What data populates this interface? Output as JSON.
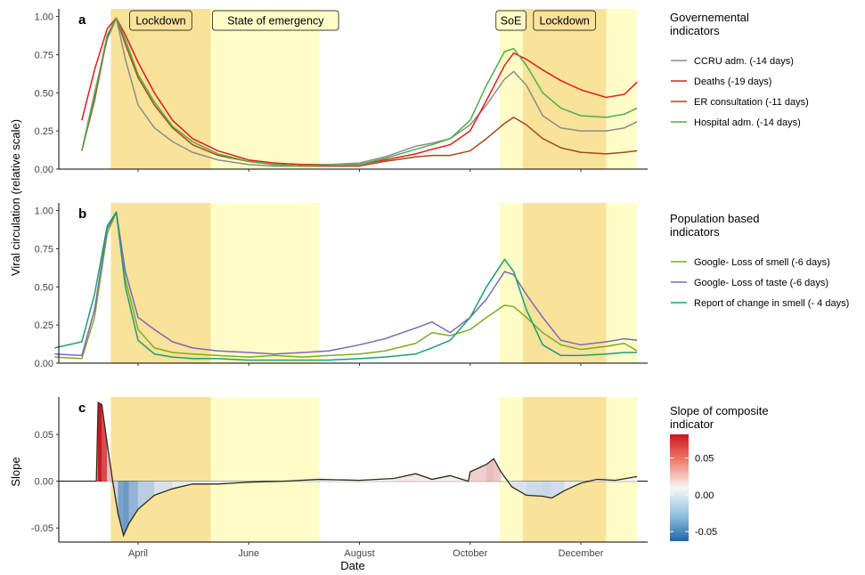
{
  "chart_data": {
    "type": "line",
    "xlabel": "Date",
    "ylabel_shared": "Viral circulation (relative scale)",
    "x_ticks": [
      "April",
      "June",
      "August",
      "October",
      "December"
    ],
    "x_tick_dates": [
      "2020-04-01",
      "2020-06-01",
      "2020-08-01",
      "2020-10-01",
      "2020-12-01"
    ],
    "x_range": [
      "2020-02-15",
      "2021-01-13"
    ],
    "periods": [
      {
        "label": "Lockdown",
        "start": "2020-03-17",
        "end": "2020-05-11",
        "color": "#f9e29a"
      },
      {
        "label": "State of emergency",
        "start": "2020-05-11",
        "end": "2020-07-10",
        "color": "#fefcc7"
      },
      {
        "label": "SoE",
        "start": "2020-10-17",
        "end": "2020-10-30",
        "color": "#fefcc7"
      },
      {
        "label": "Lockdown",
        "start": "2020-10-30",
        "end": "2020-12-15",
        "color": "#f9e29a"
      },
      {
        "label": "",
        "start": "2020-12-15",
        "end": "2021-01-01",
        "color": "#fefcc7"
      }
    ],
    "panels": [
      {
        "letter": "a",
        "ylim": [
          0,
          1.05
        ],
        "y_ticks": [
          "0.00",
          "0.25",
          "0.50",
          "0.75",
          "1.00"
        ],
        "legend_title": "Governemental\n indicators",
        "series": [
          {
            "name": "CCRU adm. (-14 days)",
            "color": "#8c8c8c",
            "x": [
              "2020-03-01",
              "2020-03-08",
              "2020-03-15",
              "2020-03-20",
              "2020-03-25",
              "2020-04-01",
              "2020-04-10",
              "2020-04-20",
              "2020-05-01",
              "2020-05-15",
              "2020-06-01",
              "2020-06-15",
              "2020-07-01",
              "2020-07-15",
              "2020-08-01",
              "2020-08-15",
              "2020-09-01",
              "2020-09-10",
              "2020-09-20",
              "2020-10-01",
              "2020-10-10",
              "2020-10-20",
              "2020-10-25",
              "2020-11-01",
              "2020-11-10",
              "2020-11-20",
              "2020-12-01",
              "2020-12-15",
              "2020-12-25",
              "2021-01-01"
            ],
            "y": [
              0.12,
              0.5,
              0.85,
              0.99,
              0.72,
              0.42,
              0.27,
              0.18,
              0.11,
              0.06,
              0.03,
              0.02,
              0.02,
              0.03,
              0.04,
              0.08,
              0.15,
              0.17,
              0.2,
              0.29,
              0.42,
              0.59,
              0.64,
              0.55,
              0.35,
              0.27,
              0.25,
              0.25,
              0.27,
              0.31
            ]
          },
          {
            "name": "Deaths (-19 days)",
            "color": "#e41a1c",
            "x": [
              "2020-03-01",
              "2020-03-08",
              "2020-03-15",
              "2020-03-20",
              "2020-03-25",
              "2020-04-01",
              "2020-04-10",
              "2020-04-20",
              "2020-05-01",
              "2020-05-15",
              "2020-06-01",
              "2020-06-15",
              "2020-07-01",
              "2020-07-15",
              "2020-08-01",
              "2020-08-15",
              "2020-09-01",
              "2020-09-10",
              "2020-09-20",
              "2020-10-01",
              "2020-10-10",
              "2020-10-20",
              "2020-10-25",
              "2020-11-01",
              "2020-11-10",
              "2020-11-20",
              "2020-12-01",
              "2020-12-15",
              "2020-12-25",
              "2021-01-01"
            ],
            "y": [
              0.32,
              0.65,
              0.92,
              0.99,
              0.88,
              0.7,
              0.5,
              0.32,
              0.2,
              0.12,
              0.06,
              0.04,
              0.03,
              0.03,
              0.03,
              0.06,
              0.1,
              0.13,
              0.16,
              0.25,
              0.45,
              0.68,
              0.76,
              0.72,
              0.65,
              0.58,
              0.52,
              0.47,
              0.49,
              0.57
            ]
          },
          {
            "name": "ER consultation (-11 days)",
            "color": "#a6461e",
            "x": [
              "2020-03-01",
              "2020-03-08",
              "2020-03-15",
              "2020-03-20",
              "2020-03-25",
              "2020-04-01",
              "2020-04-10",
              "2020-04-20",
              "2020-05-01",
              "2020-05-15",
              "2020-06-01",
              "2020-06-15",
              "2020-07-01",
              "2020-07-15",
              "2020-08-01",
              "2020-08-15",
              "2020-09-01",
              "2020-09-10",
              "2020-09-20",
              "2020-10-01",
              "2020-10-10",
              "2020-10-20",
              "2020-10-25",
              "2020-11-01",
              "2020-11-10",
              "2020-11-20",
              "2020-12-01",
              "2020-12-15",
              "2020-12-25",
              "2021-01-01"
            ],
            "y": [
              0.12,
              0.45,
              0.87,
              0.99,
              0.82,
              0.6,
              0.42,
              0.27,
              0.16,
              0.09,
              0.05,
              0.03,
              0.02,
              0.02,
              0.02,
              0.05,
              0.08,
              0.09,
              0.09,
              0.12,
              0.2,
              0.3,
              0.34,
              0.29,
              0.2,
              0.14,
              0.11,
              0.1,
              0.11,
              0.12
            ]
          },
          {
            "name": "Hospital adm. (-14 days)",
            "color": "#4daf4a",
            "x": [
              "2020-03-01",
              "2020-03-08",
              "2020-03-15",
              "2020-03-20",
              "2020-03-25",
              "2020-04-01",
              "2020-04-10",
              "2020-04-20",
              "2020-05-01",
              "2020-05-15",
              "2020-06-01",
              "2020-06-15",
              "2020-07-01",
              "2020-07-15",
              "2020-08-01",
              "2020-08-15",
              "2020-09-01",
              "2020-09-10",
              "2020-09-20",
              "2020-10-01",
              "2020-10-10",
              "2020-10-20",
              "2020-10-25",
              "2020-11-01",
              "2020-11-10",
              "2020-11-20",
              "2020-12-01",
              "2020-12-15",
              "2020-12-25",
              "2021-01-01"
            ],
            "y": [
              0.12,
              0.48,
              0.88,
              0.99,
              0.85,
              0.62,
              0.44,
              0.28,
              0.18,
              0.1,
              0.05,
              0.03,
              0.02,
              0.03,
              0.03,
              0.07,
              0.13,
              0.16,
              0.2,
              0.32,
              0.55,
              0.77,
              0.79,
              0.68,
              0.5,
              0.4,
              0.35,
              0.34,
              0.36,
              0.4
            ]
          }
        ]
      },
      {
        "letter": "b",
        "ylim": [
          0,
          1.05
        ],
        "y_ticks": [
          "0.00",
          "0.25",
          "0.50",
          "0.75",
          "1.00"
        ],
        "legend_title": "Population based\n indicators",
        "series": [
          {
            "name": "Google- Loss of smell  (-6 days)",
            "color": "#7cae1e",
            "x": [
              "2020-02-15",
              "2020-03-01",
              "2020-03-08",
              "2020-03-15",
              "2020-03-20",
              "2020-03-25",
              "2020-04-01",
              "2020-04-10",
              "2020-04-20",
              "2020-05-01",
              "2020-05-15",
              "2020-06-01",
              "2020-06-15",
              "2020-07-01",
              "2020-07-15",
              "2020-08-01",
              "2020-08-15",
              "2020-09-01",
              "2020-09-10",
              "2020-09-20",
              "2020-10-01",
              "2020-10-10",
              "2020-10-20",
              "2020-10-25",
              "2020-11-01",
              "2020-11-10",
              "2020-11-20",
              "2020-12-01",
              "2020-12-15",
              "2020-12-25",
              "2021-01-01"
            ],
            "y": [
              0.04,
              0.03,
              0.3,
              0.85,
              0.99,
              0.55,
              0.22,
              0.1,
              0.07,
              0.06,
              0.05,
              0.04,
              0.05,
              0.04,
              0.05,
              0.06,
              0.08,
              0.13,
              0.2,
              0.18,
              0.22,
              0.3,
              0.38,
              0.37,
              0.3,
              0.2,
              0.12,
              0.09,
              0.11,
              0.13,
              0.08
            ]
          },
          {
            "name": "Google- Loss of taste (-6 days)",
            "color": "#7b68b5",
            "x": [
              "2020-02-15",
              "2020-03-01",
              "2020-03-08",
              "2020-03-15",
              "2020-03-20",
              "2020-03-25",
              "2020-04-01",
              "2020-04-10",
              "2020-04-20",
              "2020-05-01",
              "2020-05-15",
              "2020-06-01",
              "2020-06-15",
              "2020-07-01",
              "2020-07-15",
              "2020-08-01",
              "2020-08-15",
              "2020-09-01",
              "2020-09-10",
              "2020-09-20",
              "2020-10-01",
              "2020-10-10",
              "2020-10-20",
              "2020-10-25",
              "2020-11-01",
              "2020-11-10",
              "2020-11-20",
              "2020-12-01",
              "2020-12-15",
              "2020-12-25",
              "2021-01-01"
            ],
            "y": [
              0.06,
              0.05,
              0.35,
              0.88,
              0.99,
              0.6,
              0.3,
              0.22,
              0.14,
              0.1,
              0.08,
              0.07,
              0.06,
              0.07,
              0.08,
              0.12,
              0.16,
              0.23,
              0.27,
              0.2,
              0.3,
              0.42,
              0.6,
              0.58,
              0.45,
              0.3,
              0.15,
              0.12,
              0.14,
              0.16,
              0.15
            ]
          },
          {
            "name": "Report of change in smell (- 4 days)",
            "color": "#1a9e77",
            "x": [
              "2020-02-15",
              "2020-03-01",
              "2020-03-08",
              "2020-03-15",
              "2020-03-20",
              "2020-03-25",
              "2020-04-01",
              "2020-04-10",
              "2020-04-20",
              "2020-05-01",
              "2020-05-15",
              "2020-06-01",
              "2020-06-15",
              "2020-07-01",
              "2020-07-15",
              "2020-08-01",
              "2020-08-15",
              "2020-09-01",
              "2020-09-10",
              "2020-09-20",
              "2020-10-01",
              "2020-10-10",
              "2020-10-20",
              "2020-10-25",
              "2020-11-01",
              "2020-11-10",
              "2020-11-20",
              "2020-12-01",
              "2020-12-15",
              "2020-12-25",
              "2021-01-01"
            ],
            "y": [
              0.1,
              0.14,
              0.45,
              0.9,
              0.99,
              0.5,
              0.15,
              0.06,
              0.04,
              0.03,
              0.03,
              0.02,
              0.02,
              0.02,
              0.02,
              0.03,
              0.04,
              0.06,
              0.1,
              0.15,
              0.3,
              0.5,
              0.68,
              0.6,
              0.35,
              0.12,
              0.05,
              0.05,
              0.06,
              0.07,
              0.07
            ]
          }
        ]
      },
      {
        "letter": "c",
        "ylabel": "Slope",
        "ylim": [
          -0.065,
          0.09
        ],
        "y_ticks": [
          "-0.05",
          "0.00",
          "0.05"
        ],
        "legend_title": "Slope of composite\n indicator",
        "colorbar_ticks": [
          "0.05",
          "0.00",
          "-0.05"
        ],
        "colorbar_colors": {
          "high": "#cb181d",
          "mid": "#f7f7f7",
          "low": "#2166ac"
        },
        "series": [
          {
            "name": "Slope",
            "color": "#2b2b1a",
            "x": [
              "2020-03-09",
              "2020-03-10",
              "2020-03-12",
              "2020-03-15",
              "2020-03-18",
              "2020-03-21",
              "2020-03-24",
              "2020-03-27",
              "2020-04-01",
              "2020-04-10",
              "2020-04-20",
              "2020-05-01",
              "2020-05-15",
              "2020-06-01",
              "2020-06-20",
              "2020-07-10",
              "2020-08-01",
              "2020-08-20",
              "2020-09-01",
              "2020-09-10",
              "2020-09-20",
              "2020-09-30",
              "2020-10-01",
              "2020-10-10",
              "2020-10-14",
              "2020-10-18",
              "2020-10-24",
              "2020-11-01",
              "2020-11-10",
              "2020-11-15",
              "2020-11-22",
              "2020-12-01",
              "2020-12-10",
              "2020-12-20",
              "2021-01-01"
            ],
            "y": [
              0.0,
              0.084,
              0.082,
              0.04,
              0.0,
              -0.035,
              -0.058,
              -0.045,
              -0.03,
              -0.015,
              -0.008,
              -0.003,
              -0.003,
              -0.001,
              0.0,
              0.002,
              0.001,
              0.003,
              0.008,
              0.002,
              0.006,
              0.0,
              0.01,
              0.018,
              0.024,
              0.01,
              -0.006,
              -0.015,
              -0.016,
              -0.018,
              -0.01,
              -0.002,
              0.002,
              0.001,
              0.005
            ]
          }
        ]
      }
    ]
  }
}
